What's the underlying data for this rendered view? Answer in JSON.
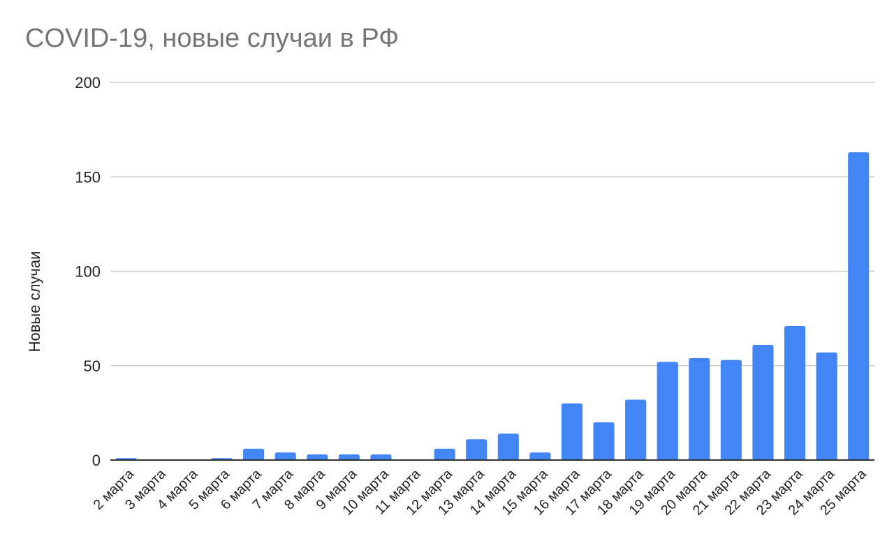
{
  "chart_data": {
    "type": "bar",
    "title": "COVID-19, новые случаи в РФ",
    "xlabel": "",
    "ylabel": "Новые случаи",
    "ylim": [
      0,
      200
    ],
    "yticks": [
      0,
      50,
      100,
      150,
      200
    ],
    "grid": true,
    "legend": "none",
    "categories": [
      "2 марта",
      "3 марта",
      "4 марта",
      "5 марта",
      "6 марта",
      "7 марта",
      "8 марта",
      "9 марта",
      "10 марта",
      "11 марта",
      "12 марта",
      "13 марта",
      "14 марта",
      "15 марта",
      "16 марта",
      "17 марта",
      "18 марта",
      "19 марта",
      "20 марта",
      "21 марта",
      "22 марта",
      "23 марта",
      "24 марта",
      "25 марта"
    ],
    "values": [
      1,
      0,
      0,
      1,
      6,
      4,
      3,
      3,
      3,
      0,
      6,
      11,
      14,
      4,
      30,
      20,
      32,
      52,
      54,
      53,
      61,
      71,
      57,
      163
    ],
    "colors": {
      "bar": "#4285f4",
      "grid": "#cccccc",
      "axis": "#333333",
      "title": "#757575"
    }
  }
}
